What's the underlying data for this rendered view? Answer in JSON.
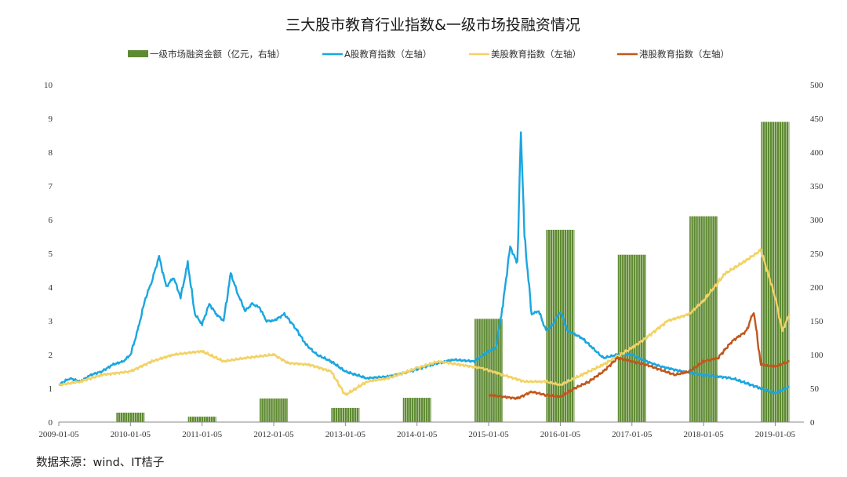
{
  "chart_data": {
    "type": "bar+line",
    "title": "三大股市教育行业指数&一级市场投融资情况",
    "x_ticks": [
      "2009-01-05",
      "2010-01-05",
      "2011-01-05",
      "2012-01-05",
      "2013-01-05",
      "2014-01-05",
      "2015-01-05",
      "2016-01-05",
      "2017-01-05",
      "2018-01-05",
      "2019-01-05"
    ],
    "y_left": {
      "min": 0,
      "max": 10,
      "ticks": [
        "0",
        "1",
        "2",
        "3",
        "4",
        "5",
        "6",
        "7",
        "8",
        "9",
        "10"
      ]
    },
    "y_right": {
      "min": 0,
      "max": 500,
      "ticks": [
        "0",
        "50",
        "100",
        "150",
        "200",
        "250",
        "300",
        "350",
        "400",
        "450",
        "500"
      ]
    },
    "legend_position": "top",
    "bars": {
      "name": "一级市场融资金额（亿元，右轴）",
      "color": "#5e8a32",
      "axis": "right",
      "categories": [
        "2010",
        "2011",
        "2012",
        "2013",
        "2014",
        "2015",
        "2016",
        "2017",
        "2018",
        "2019"
      ],
      "values": [
        14,
        8,
        35,
        21,
        36,
        153,
        285,
        248,
        305,
        445
      ]
    },
    "series": [
      {
        "name": "A股教育指数（左轴）",
        "color": "#1aa6df",
        "axis": "left",
        "x": [
          2009.0,
          2009.15,
          2009.3,
          2009.45,
          2009.6,
          2009.75,
          2009.9,
          2010.0,
          2010.1,
          2010.2,
          2010.3,
          2010.4,
          2010.5,
          2010.6,
          2010.7,
          2010.8,
          2010.9,
          2011.0,
          2011.1,
          2011.2,
          2011.3,
          2011.4,
          2011.5,
          2011.6,
          2011.7,
          2011.8,
          2011.9,
          2012.0,
          2012.15,
          2012.3,
          2012.45,
          2012.6,
          2012.8,
          2013.0,
          2013.3,
          2013.6,
          2013.9,
          2014.2,
          2014.5,
          2014.8,
          2015.0,
          2015.1,
          2015.2,
          2015.3,
          2015.4,
          2015.45,
          2015.5,
          2015.6,
          2015.7,
          2015.8,
          2015.9,
          2016.0,
          2016.1,
          2016.2,
          2016.3,
          2016.45,
          2016.6,
          2016.8,
          2017.0,
          2017.2,
          2017.4,
          2017.7,
          2018.0,
          2018.4,
          2018.8,
          2019.0,
          2019.2
        ],
        "y": [
          1.1,
          1.3,
          1.2,
          1.4,
          1.5,
          1.7,
          1.8,
          2.0,
          2.7,
          3.6,
          4.2,
          4.9,
          4.0,
          4.3,
          3.7,
          4.7,
          3.2,
          2.9,
          3.5,
          3.2,
          3.0,
          4.4,
          3.8,
          3.3,
          3.5,
          3.4,
          3.0,
          3.0,
          3.2,
          2.8,
          2.3,
          2.0,
          1.8,
          1.5,
          1.3,
          1.35,
          1.5,
          1.7,
          1.85,
          1.8,
          2.1,
          2.2,
          3.5,
          5.2,
          4.7,
          8.6,
          5.5,
          3.2,
          3.3,
          2.7,
          2.9,
          3.3,
          2.7,
          2.6,
          2.5,
          2.2,
          1.9,
          2.0,
          2.0,
          1.8,
          1.65,
          1.5,
          1.4,
          1.3,
          1.0,
          0.85,
          1.05
        ]
      },
      {
        "name": "美股教育指数（左轴）",
        "color": "#f2d264",
        "axis": "left",
        "x": [
          2009.0,
          2009.3,
          2009.6,
          2010.0,
          2010.3,
          2010.6,
          2011.0,
          2011.3,
          2011.6,
          2012.0,
          2012.2,
          2012.5,
          2012.8,
          2013.0,
          2013.3,
          2013.6,
          2014.0,
          2014.3,
          2014.6,
          2014.9,
          2015.2,
          2015.5,
          2015.8,
          2016.0,
          2016.3,
          2016.6,
          2017.0,
          2017.2,
          2017.5,
          2017.8,
          2018.0,
          2018.3,
          2018.6,
          2018.8,
          2019.0,
          2019.1,
          2019.2
        ],
        "y": [
          1.1,
          1.2,
          1.4,
          1.5,
          1.8,
          2.0,
          2.1,
          1.8,
          1.9,
          2.0,
          1.75,
          1.7,
          1.5,
          0.8,
          1.2,
          1.3,
          1.6,
          1.8,
          1.7,
          1.6,
          1.4,
          1.2,
          1.2,
          1.1,
          1.4,
          1.7,
          2.2,
          2.5,
          3.0,
          3.2,
          3.6,
          4.4,
          4.8,
          5.1,
          3.7,
          2.7,
          3.2
        ]
      },
      {
        "name": "港股教育指数（左轴）",
        "color": "#c0571c",
        "axis": "left",
        "x": [
          2015.0,
          2015.2,
          2015.4,
          2015.6,
          2015.8,
          2016.0,
          2016.2,
          2016.4,
          2016.6,
          2016.8,
          2017.0,
          2017.2,
          2017.4,
          2017.6,
          2017.8,
          2018.0,
          2018.2,
          2018.4,
          2018.6,
          2018.7,
          2018.8,
          2019.0,
          2019.2
        ],
        "y": [
          0.8,
          0.75,
          0.7,
          0.9,
          0.8,
          0.75,
          1.0,
          1.2,
          1.5,
          1.9,
          1.8,
          1.7,
          1.55,
          1.4,
          1.5,
          1.8,
          1.9,
          2.4,
          2.7,
          3.3,
          1.7,
          1.65,
          1.8
        ]
      }
    ],
    "source": "数据来源：wind、IT桔子"
  }
}
